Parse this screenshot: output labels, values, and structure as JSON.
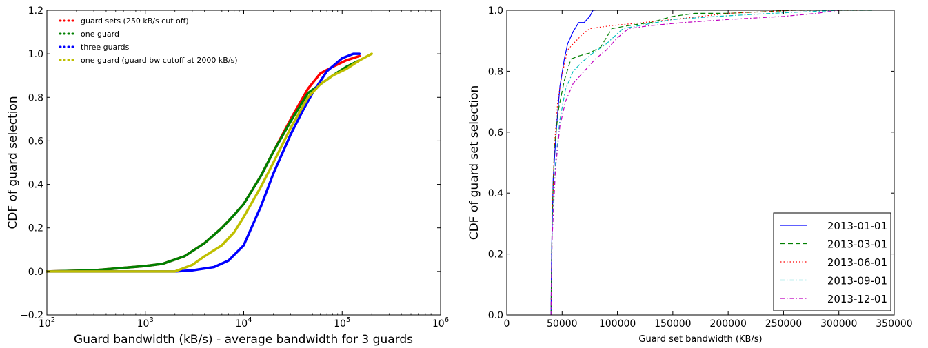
{
  "chart_data": [
    {
      "type": "line",
      "x_scale": "log",
      "xlim": [
        100,
        1000000
      ],
      "ylim": [
        -0.2,
        1.2
      ],
      "xlabel": "Guard bandwidth (kB/s) - average bandwidth for 3 guards",
      "ylabel": "CDF of guard selection",
      "x_ticks": [
        {
          "value": 100,
          "base": "10",
          "exp": "2"
        },
        {
          "value": 1000,
          "base": "10",
          "exp": "3"
        },
        {
          "value": 10000,
          "base": "10",
          "exp": "4"
        },
        {
          "value": 100000,
          "base": "10",
          "exp": "5"
        },
        {
          "value": 1000000,
          "base": "10",
          "exp": "6"
        }
      ],
      "y_ticks": [
        {
          "value": -0.2,
          "label": "−0.2"
        },
        {
          "value": 0.0,
          "label": "0.0"
        },
        {
          "value": 0.2,
          "label": "0.2"
        },
        {
          "value": 0.4,
          "label": "0.4"
        },
        {
          "value": 0.6,
          "label": "0.6"
        },
        {
          "value": 0.8,
          "label": "0.8"
        },
        {
          "value": 1.0,
          "label": "1.0"
        },
        {
          "value": 1.2,
          "label": "1.2"
        }
      ],
      "legend_position": "top-left",
      "series": [
        {
          "name": "guard sets (250 kB/s cut off)",
          "color": "#ff0000",
          "style": "dotted",
          "x": [
            100,
            300,
            1000,
            1500,
            2500,
            4000,
            6000,
            8000,
            10000,
            15000,
            20000,
            30000,
            45000,
            60000,
            80000,
            110000,
            150000
          ],
          "y": [
            0.0,
            0.005,
            0.025,
            0.035,
            0.07,
            0.13,
            0.2,
            0.26,
            0.31,
            0.44,
            0.55,
            0.7,
            0.84,
            0.91,
            0.94,
            0.97,
            0.99
          ]
        },
        {
          "name": "one guard",
          "color": "#008000",
          "style": "dotted",
          "x": [
            100,
            300,
            1000,
            1500,
            2500,
            4000,
            6000,
            8000,
            10000,
            15000,
            20000,
            30000,
            45000,
            60000,
            80000,
            110000,
            150000
          ],
          "y": [
            0.0,
            0.005,
            0.025,
            0.035,
            0.07,
            0.13,
            0.2,
            0.26,
            0.31,
            0.44,
            0.55,
            0.69,
            0.82,
            0.86,
            0.9,
            0.94,
            0.97
          ]
        },
        {
          "name": "three guards",
          "color": "#0000ff",
          "style": "dotted",
          "x": [
            100,
            1000,
            2000,
            3000,
            5000,
            7000,
            10000,
            15000,
            20000,
            30000,
            40000,
            50000,
            70000,
            100000,
            130000,
            150000
          ],
          "y": [
            0.0,
            0.0,
            0.0,
            0.005,
            0.02,
            0.05,
            0.12,
            0.3,
            0.45,
            0.63,
            0.74,
            0.82,
            0.92,
            0.98,
            1.0,
            1.0
          ]
        },
        {
          "name": "one guard (guard bw cutoff at 2000 kB/s)",
          "color": "#bfbf00",
          "style": "dotted",
          "x": [
            100,
            1000,
            2000,
            3000,
            4000,
            6000,
            8000,
            10000,
            15000,
            20000,
            30000,
            45000,
            60000,
            80000,
            110000,
            150000,
            200000
          ],
          "y": [
            0.0,
            0.0,
            0.0,
            0.03,
            0.07,
            0.12,
            0.18,
            0.25,
            0.39,
            0.5,
            0.66,
            0.8,
            0.86,
            0.9,
            0.93,
            0.97,
            1.0
          ]
        }
      ]
    },
    {
      "type": "line",
      "xlim": [
        0,
        350000
      ],
      "ylim": [
        0.0,
        1.0
      ],
      "xlabel": "Guard set bandwidth (KB/s)",
      "ylabel": "CDF of guard set selection",
      "x_ticks": [
        {
          "value": 0,
          "label": "0"
        },
        {
          "value": 50000,
          "label": "50000"
        },
        {
          "value": 100000,
          "label": "100000"
        },
        {
          "value": 150000,
          "label": "150000"
        },
        {
          "value": 200000,
          "label": "200000"
        },
        {
          "value": 250000,
          "label": "250000"
        },
        {
          "value": 300000,
          "label": "300000"
        },
        {
          "value": 350000,
          "label": "350000"
        }
      ],
      "y_ticks": [
        {
          "value": 0.0,
          "label": "0.0"
        },
        {
          "value": 0.2,
          "label": "0.2"
        },
        {
          "value": 0.4,
          "label": "0.4"
        },
        {
          "value": 0.6,
          "label": "0.6"
        },
        {
          "value": 0.8,
          "label": "0.8"
        },
        {
          "value": 1.0,
          "label": "1.0"
        }
      ],
      "legend_position": "lower-right",
      "series": [
        {
          "name": "2013-01-01",
          "color": "#0000ff",
          "style": "solid",
          "x": [
            40000,
            40500,
            42000,
            45000,
            48000,
            52000,
            55000,
            60000,
            65000,
            70000,
            75000,
            78000,
            80000
          ],
          "y": [
            0.0,
            0.2,
            0.45,
            0.62,
            0.75,
            0.84,
            0.89,
            0.93,
            0.96,
            0.96,
            0.98,
            1.0,
            1.0
          ]
        },
        {
          "name": "2013-03-01",
          "color": "#008000",
          "style": "dashed",
          "x": [
            40000,
            41000,
            43000,
            47000,
            52000,
            58000,
            65000,
            75000,
            85000,
            95000,
            110000,
            130000,
            150000,
            170000,
            200000,
            260000,
            330000
          ],
          "y": [
            0.0,
            0.3,
            0.55,
            0.68,
            0.77,
            0.84,
            0.85,
            0.86,
            0.88,
            0.94,
            0.95,
            0.96,
            0.98,
            0.99,
            0.99,
            1.0,
            1.0
          ]
        },
        {
          "name": "2013-06-01",
          "color": "#ff0000",
          "style": "dotted",
          "x": [
            40000,
            41000,
            43000,
            46000,
            50000,
            55000,
            60000,
            68000,
            75000,
            85000,
            95000,
            110000,
            150000,
            200000,
            260000,
            320000
          ],
          "y": [
            0.0,
            0.3,
            0.55,
            0.7,
            0.79,
            0.87,
            0.89,
            0.92,
            0.94,
            0.945,
            0.95,
            0.955,
            0.97,
            0.99,
            1.0,
            1.0
          ]
        },
        {
          "name": "2013-09-01",
          "color": "#00bfbf",
          "style": "dashdot",
          "x": [
            40000,
            41000,
            44000,
            48000,
            53000,
            60000,
            68000,
            78000,
            90000,
            105000,
            120000,
            150000,
            190000,
            240000,
            300000,
            330000
          ],
          "y": [
            0.0,
            0.28,
            0.5,
            0.64,
            0.74,
            0.8,
            0.83,
            0.86,
            0.89,
            0.94,
            0.95,
            0.97,
            0.98,
            0.99,
            1.0,
            1.0
          ]
        },
        {
          "name": "2013-12-01",
          "color": "#bf00bf",
          "style": "dashdot",
          "x": [
            40000,
            41000,
            44000,
            48000,
            53000,
            60000,
            70000,
            80000,
            90000,
            100000,
            110000,
            130000,
            160000,
            200000,
            250000,
            280000,
            300000
          ],
          "y": [
            0.0,
            0.25,
            0.48,
            0.62,
            0.7,
            0.76,
            0.8,
            0.84,
            0.87,
            0.91,
            0.94,
            0.95,
            0.96,
            0.97,
            0.98,
            0.99,
            1.0
          ]
        }
      ]
    }
  ]
}
